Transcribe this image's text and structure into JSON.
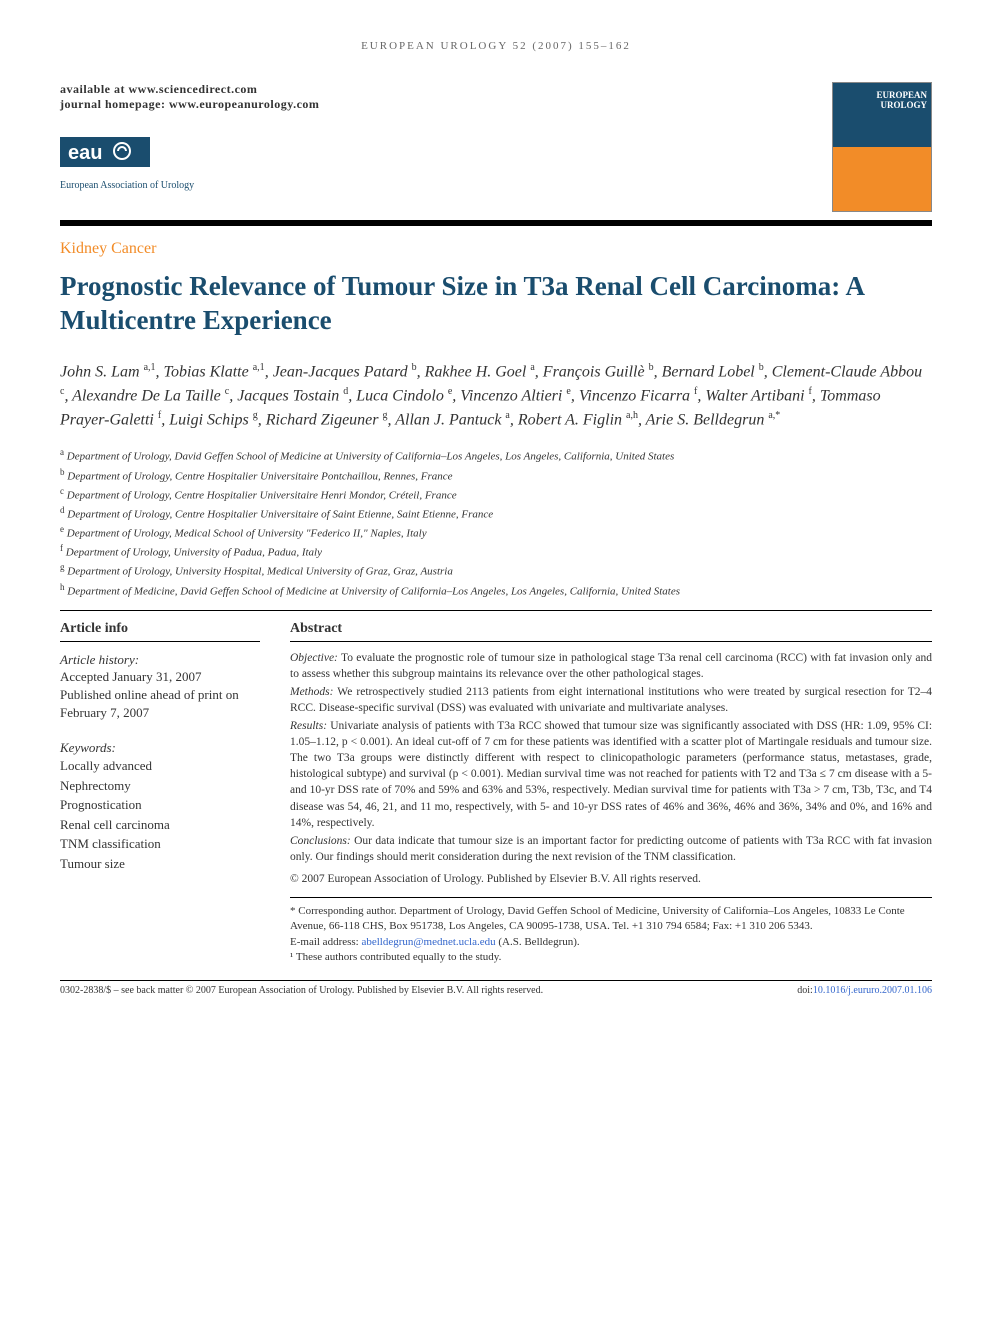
{
  "running_head": "EUROPEAN UROLOGY 52 (2007) 155–162",
  "header": {
    "available": "available at www.sciencedirect.com",
    "homepage": "journal homepage: www.europeanurology.com",
    "eau_text": "European Association of Urology",
    "cover_title": "EUROPEAN UROLOGY"
  },
  "section_label": "Kidney Cancer",
  "title": "Prognostic Relevance of Tumour Size in T3a Renal Cell Carcinoma: A Multicentre Experience",
  "authors_html": "John S. Lam <sup>a,1</sup>, Tobias Klatte <sup>a,1</sup>, Jean-Jacques Patard <sup>b</sup>, Rakhee H. Goel <sup>a</sup>, François Guillè <sup>b</sup>, Bernard Lobel <sup>b</sup>, Clement-Claude Abbou <sup>c</sup>, Alexandre De La Taille <sup>c</sup>, Jacques Tostain <sup>d</sup>, Luca Cindolo <sup>e</sup>, Vincenzo Altieri <sup>e</sup>, Vincenzo Ficarra <sup>f</sup>, Walter Artibani <sup>f</sup>, Tommaso Prayer-Galetti <sup>f</sup>, Luigi Schips <sup>g</sup>, Richard Zigeuner <sup>g</sup>, Allan J. Pantuck <sup>a</sup>, Robert A. Figlin <sup>a,h</sup>, Arie S. Belldegrun <sup>a,*</sup>",
  "affiliations": [
    {
      "sup": "a",
      "text": "Department of Urology, David Geffen School of Medicine at University of California–Los Angeles, Los Angeles, California, United States"
    },
    {
      "sup": "b",
      "text": "Department of Urology, Centre Hospitalier Universitaire Pontchaillou, Rennes, France"
    },
    {
      "sup": "c",
      "text": "Department of Urology, Centre Hospitalier Universitaire Henri Mondor, Créteil, France"
    },
    {
      "sup": "d",
      "text": "Department of Urology, Centre Hospitalier Universitaire of Saint Etienne, Saint Etienne, France"
    },
    {
      "sup": "e",
      "text": "Department of Urology, Medical School of University \"Federico II,\" Naples, Italy"
    },
    {
      "sup": "f",
      "text": "Department of Urology, University of Padua, Padua, Italy"
    },
    {
      "sup": "g",
      "text": "Department of Urology, University Hospital, Medical University of Graz, Graz, Austria"
    },
    {
      "sup": "h",
      "text": "Department of Medicine, David Geffen School of Medicine at University of California–Los Angeles, Los Angeles, California, United States"
    }
  ],
  "article_info": {
    "heading": "Article info",
    "history_label": "Article history:",
    "history_text": "Accepted January 31, 2007\nPublished online ahead of print on February 7, 2007",
    "keywords_label": "Keywords:",
    "keywords": [
      "Locally advanced",
      "Nephrectomy",
      "Prognostication",
      "Renal cell carcinoma",
      "TNM classification",
      "Tumour size"
    ]
  },
  "abstract": {
    "heading": "Abstract",
    "objective_label": "Objective:",
    "objective": "To evaluate the prognostic role of tumour size in pathological stage T3a renal cell carcinoma (RCC) with fat invasion only and to assess whether this subgroup maintains its relevance over the other pathological stages.",
    "methods_label": "Methods:",
    "methods": "We retrospectively studied 2113 patients from eight international institutions who were treated by surgical resection for T2–4 RCC. Disease-specific survival (DSS) was evaluated with univariate and multivariate analyses.",
    "results_label": "Results:",
    "results": "Univariate analysis of patients with T3a RCC showed that tumour size was significantly associated with DSS (HR: 1.09, 95% CI: 1.05–1.12, p < 0.001). An ideal cut-off of 7 cm for these patients was identified with a scatter plot of Martingale residuals and tumour size. The two T3a groups were distinctly different with respect to clinicopathologic parameters (performance status, metastases, grade, histological subtype) and survival (p < 0.001). Median survival time was not reached for patients with T2 and T3a ≤ 7 cm disease with a 5- and 10-yr DSS rate of 70% and 59% and 63% and 53%, respectively. Median survival time for patients with T3a > 7 cm, T3b, T3c, and T4 disease was 54, 46, 21, and 11 mo, respectively, with 5- and 10-yr DSS rates of 46% and 36%, 46% and 36%, 34% and 0%, and 16% and 14%, respectively.",
    "conclusions_label": "Conclusions:",
    "conclusions": "Our data indicate that tumour size is an important factor for predicting outcome of patients with T3a RCC with fat invasion only. Our findings should merit consideration during the next revision of the TNM classification.",
    "copyright": "© 2007 European Association of Urology. Published by Elsevier B.V. All rights reserved."
  },
  "corresp": {
    "star": "* Corresponding author. Department of Urology, David Geffen School of Medicine, University of California–Los Angeles, 10833 Le Conte Avenue, 66-118 CHS, Box 951738, Los Angeles, CA 90095-1738, USA. Tel. +1 310 794 6584; Fax: +1 310 206 5343.",
    "email_label": "E-mail address:",
    "email": "abelldegrun@mednet.ucla.edu",
    "email_paren": "(A.S. Belldegrun).",
    "note1": "¹ These authors contributed equally to the study."
  },
  "footer": {
    "left": "0302-2838/$ – see back matter © 2007 European Association of Urology. Published by Elsevier B.V. All rights reserved.",
    "doi_label": "doi:",
    "doi": "10.1016/j.eururo.2007.01.106"
  },
  "colors": {
    "accent_orange": "#f28c28",
    "accent_blue": "#1a4d6e",
    "link_blue": "#3366cc",
    "text": "#333333",
    "bg": "#ffffff"
  },
  "typography": {
    "title_fontsize": 27,
    "body_fontsize": 13,
    "abstract_fontsize": 11.5,
    "running_head_fontsize": 11,
    "affil_fontsize": 11
  }
}
